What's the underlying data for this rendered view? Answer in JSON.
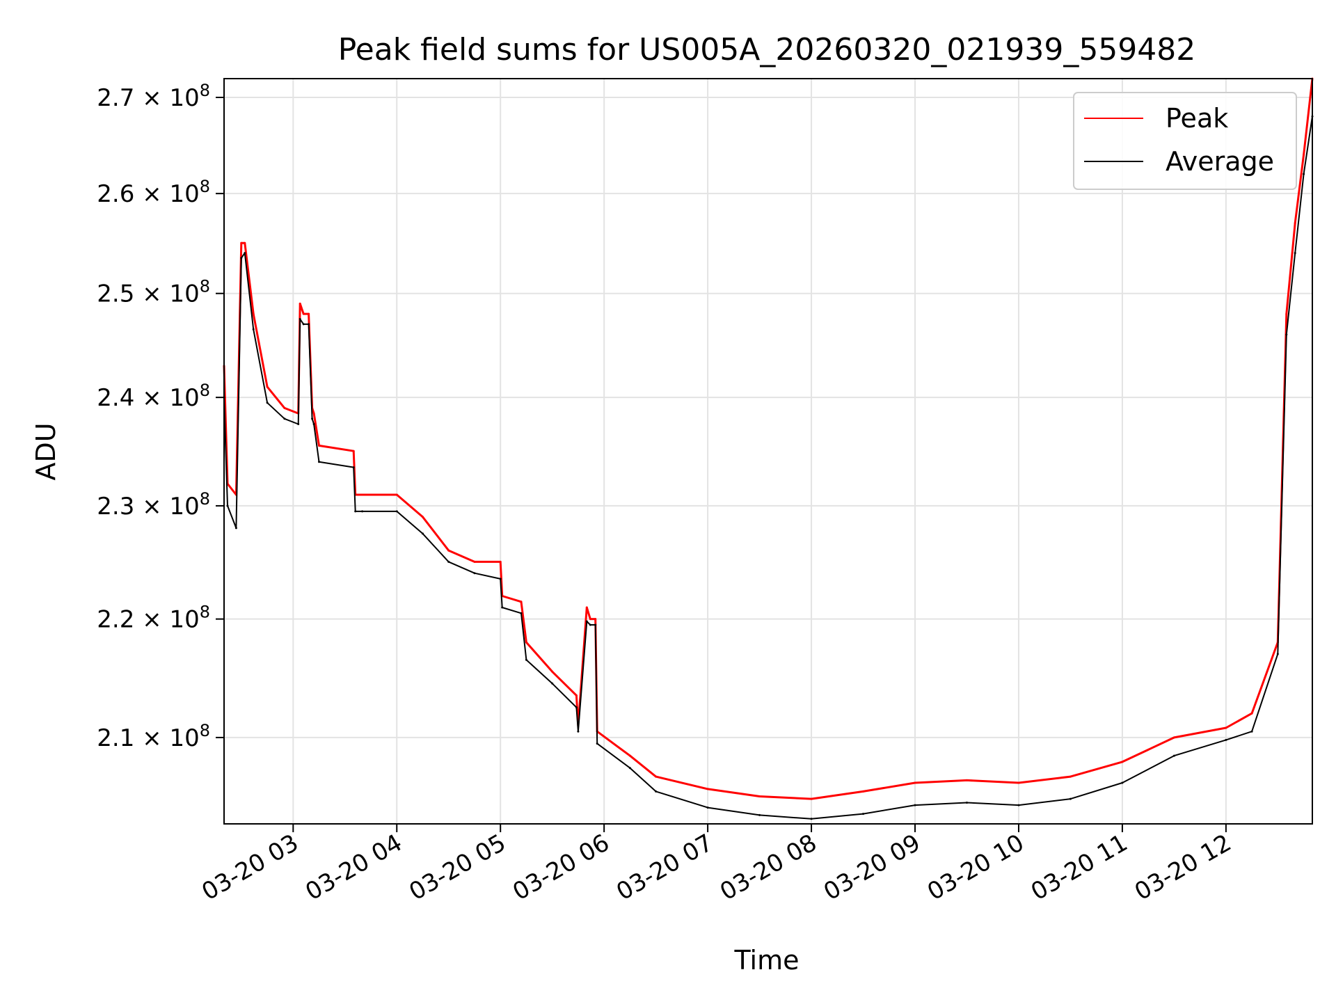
{
  "chart_data": {
    "type": "line",
    "title": "Peak field sums for US005A_20260320_021939_559482",
    "xlabel": "Time",
    "ylabel": "ADU",
    "xlim": [
      "03-20 02:20",
      "03-20 12:50"
    ],
    "ylim": [
      203000000,
      272000000
    ],
    "y_scale": "log",
    "grid": true,
    "legend": "top-right",
    "x_ticks": [
      "03-20 03",
      "03-20 04",
      "03-20 05",
      "03-20 06",
      "03-20 07",
      "03-20 08",
      "03-20 09",
      "03-20 10",
      "03-20 11",
      "03-20 12"
    ],
    "y_ticks": [
      {
        "value": 210000000,
        "mantissa": "2.1"
      },
      {
        "value": 220000000,
        "mantissa": "2.2"
      },
      {
        "value": 230000000,
        "mantissa": "2.3"
      },
      {
        "value": 240000000,
        "mantissa": "2.4"
      },
      {
        "value": 250000000,
        "mantissa": "2.5"
      },
      {
        "value": 260000000,
        "mantissa": "2.6"
      },
      {
        "value": 270000000,
        "mantissa": "2.7"
      }
    ],
    "y_tick_suffix": "× 10",
    "y_tick_exponent": "8",
    "series": [
      {
        "name": "Peak",
        "color": "#ff0000",
        "x": [
          "03-20 02:20",
          "03-20 02:22",
          "03-20 02:27",
          "03-20 02:30",
          "03-20 02:32",
          "03-20 02:37",
          "03-20 02:45",
          "03-20 02:55",
          "03-20 03:03",
          "03-20 03:04",
          "03-20 03:06",
          "03-20 03:09",
          "03-20 03:11",
          "03-20 03:12",
          "03-20 03:15",
          "03-20 03:35",
          "03-20 03:36",
          "03-20 03:40",
          "03-20 04:00",
          "03-20 04:15",
          "03-20 04:30",
          "03-20 04:45",
          "03-20 05:00",
          "03-20 05:01",
          "03-20 05:12",
          "03-20 05:15",
          "03-20 05:30",
          "03-20 05:44",
          "03-20 05:45",
          "03-20 05:50",
          "03-20 05:52",
          "03-20 05:55",
          "03-20 05:56",
          "03-20 06:15",
          "03-20 06:30",
          "03-20 07:00",
          "03-20 07:30",
          "03-20 08:00",
          "03-20 08:30",
          "03-20 09:00",
          "03-20 09:30",
          "03-20 10:00",
          "03-20 10:30",
          "03-20 11:00",
          "03-20 11:30",
          "03-20 12:00",
          "03-20 12:15",
          "03-20 12:30",
          "03-20 12:35",
          "03-20 12:40",
          "03-20 12:45",
          "03-20 12:50"
        ],
        "values": [
          243000000,
          232000000,
          231000000,
          255000000,
          255000000,
          248000000,
          241000000,
          239000000,
          238500000,
          249000000,
          248000000,
          248000000,
          239000000,
          238500000,
          235500000,
          235000000,
          231000000,
          231000000,
          231000000,
          229000000,
          226000000,
          225000000,
          225000000,
          222000000,
          221500000,
          218000000,
          215500000,
          213500000,
          211000000,
          221000000,
          220000000,
          220000000,
          210500000,
          208500000,
          206800000,
          205800000,
          205200000,
          205000000,
          205600000,
          206300000,
          206500000,
          206300000,
          206800000,
          208000000,
          210000000,
          210800000,
          212000000,
          218000000,
          248000000,
          257000000,
          264000000,
          272000000
        ]
      },
      {
        "name": "Average",
        "color": "#000000",
        "x": [
          "03-20 02:20",
          "03-20 02:22",
          "03-20 02:27",
          "03-20 02:30",
          "03-20 02:32",
          "03-20 02:37",
          "03-20 02:45",
          "03-20 02:55",
          "03-20 03:03",
          "03-20 03:04",
          "03-20 03:06",
          "03-20 03:09",
          "03-20 03:11",
          "03-20 03:12",
          "03-20 03:15",
          "03-20 03:35",
          "03-20 03:36",
          "03-20 03:40",
          "03-20 04:00",
          "03-20 04:15",
          "03-20 04:30",
          "03-20 04:45",
          "03-20 05:00",
          "03-20 05:01",
          "03-20 05:12",
          "03-20 05:15",
          "03-20 05:30",
          "03-20 05:44",
          "03-20 05:45",
          "03-20 05:50",
          "03-20 05:52",
          "03-20 05:55",
          "03-20 05:56",
          "03-20 06:15",
          "03-20 06:30",
          "03-20 07:00",
          "03-20 07:30",
          "03-20 08:00",
          "03-20 08:30",
          "03-20 09:00",
          "03-20 09:30",
          "03-20 10:00",
          "03-20 10:30",
          "03-20 11:00",
          "03-20 11:30",
          "03-20 12:00",
          "03-20 12:15",
          "03-20 12:30",
          "03-20 12:35",
          "03-20 12:40",
          "03-20 12:45",
          "03-20 12:50"
        ],
        "values": [
          240000000,
          230000000,
          228000000,
          253500000,
          254000000,
          246500000,
          239500000,
          238000000,
          237500000,
          247500000,
          247000000,
          247000000,
          238000000,
          237500000,
          234000000,
          233500000,
          229500000,
          229500000,
          229500000,
          227500000,
          225000000,
          224000000,
          223500000,
          221000000,
          220500000,
          216500000,
          214500000,
          212500000,
          210500000,
          219800000,
          219500000,
          219500000,
          209500000,
          207500000,
          205600000,
          204300000,
          203700000,
          203400000,
          203800000,
          204500000,
          204700000,
          204500000,
          205000000,
          206300000,
          208500000,
          209800000,
          210500000,
          217000000,
          246000000,
          254000000,
          262000000,
          268000000
        ]
      }
    ]
  }
}
